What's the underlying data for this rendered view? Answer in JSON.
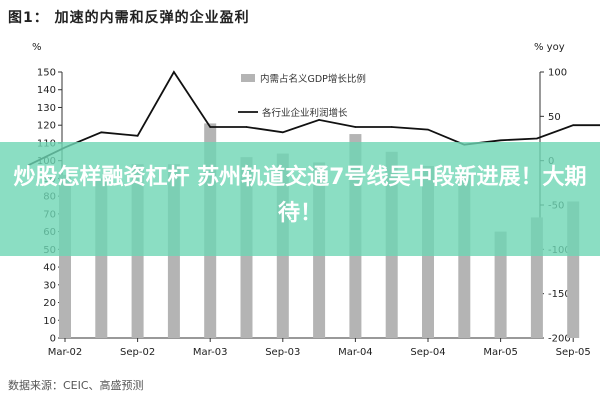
{
  "figure": {
    "title": "图1： 加速的内需和反弹的企业盈利",
    "source": "数据来源：CEIC、高盛预测"
  },
  "overlay": {
    "text": "炒股怎样融资杠杆 苏州轨道交通7号线吴中段新进展！大期待！"
  },
  "colors": {
    "bar": "#b4b4b4",
    "line": "#111111",
    "banner": "#6ed6b4"
  },
  "chart_data": {
    "type": "bar",
    "title": "",
    "xlabel": "",
    "ylabel": "%",
    "y2label": "% yoy",
    "ylim": [
      0,
      150
    ],
    "y2lim": [
      -200,
      100
    ],
    "yticks": [
      0,
      10,
      20,
      30,
      40,
      50,
      60,
      70,
      80,
      90,
      100,
      110,
      120,
      130,
      140,
      150
    ],
    "y2ticks": [
      -200,
      -150,
      -100,
      -50,
      0,
      50,
      100
    ],
    "x_tick_labels": [
      "Mar-02",
      "Sep-02",
      "Mar-03",
      "Sep-03",
      "Mar-04",
      "Sep-04",
      "Mar-05",
      "Sep-05"
    ],
    "grid": false,
    "legend_position": "top-center",
    "series": [
      {
        "name": "内需占名义GDP增长比例",
        "kind": "bar",
        "axis": "left",
        "x": [
          "Mar-02",
          "Jun-02",
          "Sep-02",
          "Dec-02",
          "Mar-03",
          "Jun-03",
          "Sep-03",
          "Dec-03",
          "Mar-04",
          "Jun-04",
          "Sep-04",
          "Dec-04",
          "Mar-05",
          "Jun-05",
          "Sep-05",
          "Dec-05"
        ],
        "values": [
          92,
          90,
          98,
          98,
          121,
          102,
          104,
          99,
          115,
          105,
          97,
          92,
          60,
          68,
          77,
          99
        ]
      },
      {
        "name": "各行业企业利润增长",
        "kind": "line",
        "axis": "right",
        "x": [
          "Dec-01",
          "Mar-02",
          "Jun-02",
          "Sep-02",
          "Dec-02",
          "Mar-03",
          "Jun-03",
          "Sep-03",
          "Dec-03",
          "Mar-04",
          "Jun-04",
          "Sep-04",
          "Dec-04",
          "Mar-05",
          "Jun-05",
          "Sep-05",
          "Dec-05"
        ],
        "values": [
          -5,
          15,
          32,
          28,
          100,
          38,
          38,
          32,
          46,
          38,
          38,
          35,
          18,
          23,
          25,
          40,
          40
        ]
      }
    ]
  }
}
